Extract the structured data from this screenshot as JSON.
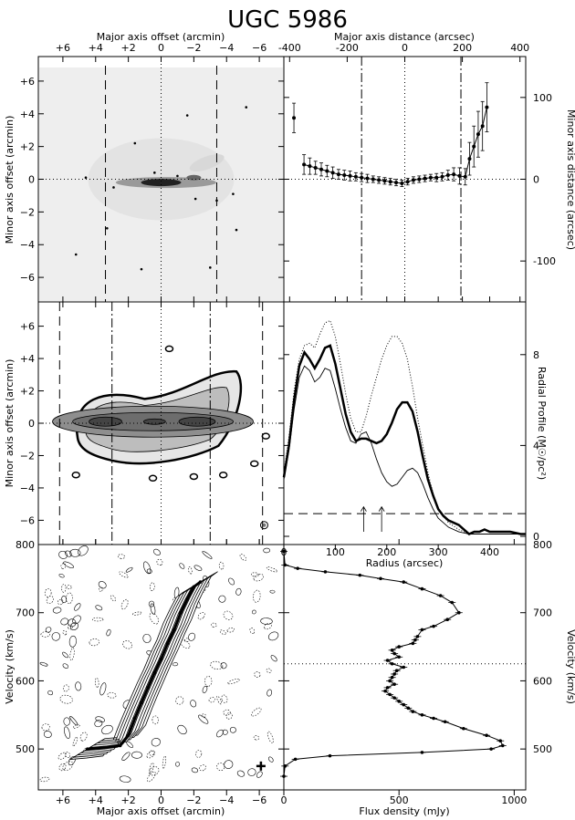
{
  "title": "UGC 5986",
  "chart_data": [
    {
      "id": "optical_image",
      "type": "heatmap",
      "xlabel": "Major axis offset (arcmin)",
      "ylabel": "Minor axis offset (arcmin)",
      "xlim": [
        7.5,
        -7.5
      ],
      "ylim": [
        -7.5,
        7.5
      ],
      "xticks": [
        6,
        4,
        2,
        0,
        -2,
        -4,
        -6
      ],
      "xtick_labels": [
        "+6",
        "+4",
        "+2",
        "0",
        "−2",
        "−4",
        "−6"
      ],
      "yticks": [
        6,
        4,
        2,
        0,
        -2,
        -4,
        -6
      ],
      "ytick_labels": [
        "+6",
        "+4",
        "+2",
        "0",
        "−2",
        "−4",
        "−6"
      ],
      "dashed_lines_x": [
        3.4,
        -3.4
      ]
    },
    {
      "id": "minor_axis_distance",
      "type": "scatter",
      "xlabel": "Major axis distance (arcsec)",
      "ylabel": "Minor axis distance (arcsec)",
      "xlim": [
        -420,
        420
      ],
      "ylim": [
        -150,
        150
      ],
      "xticks": [
        -400,
        -200,
        0,
        200,
        400
      ],
      "yticks": [
        100,
        0,
        -100
      ],
      "x": [
        -385,
        -350,
        -330,
        -310,
        -290,
        -270,
        -250,
        -230,
        -210,
        -190,
        -170,
        -150,
        -130,
        -110,
        -90,
        -70,
        -50,
        -30,
        -10,
        10,
        30,
        50,
        70,
        90,
        110,
        130,
        150,
        170,
        190,
        210,
        225,
        240,
        255,
        270,
        285
      ],
      "y": [
        75,
        18,
        16,
        14,
        12,
        10,
        8,
        6,
        5,
        4,
        3,
        2,
        1,
        0,
        -1,
        -2,
        -3,
        -4,
        -5,
        -3,
        -1,
        0,
        1,
        2,
        2,
        3,
        5,
        6,
        4,
        3,
        25,
        40,
        55,
        65,
        88
      ],
      "err": [
        18,
        12,
        10,
        8,
        8,
        7,
        7,
        6,
        6,
        6,
        5,
        5,
        5,
        4,
        4,
        4,
        4,
        4,
        4,
        4,
        4,
        4,
        4,
        4,
        5,
        5,
        6,
        8,
        10,
        10,
        20,
        25,
        28,
        30,
        30
      ],
      "vlines_dashdot": [
        -150,
        195
      ],
      "vline_dotted": [
        0
      ],
      "hline_dotted": [
        0
      ]
    },
    {
      "id": "hi_intensity",
      "type": "heatmap",
      "ylabel": "Minor axis offset (arcmin)",
      "xlim": [
        7.5,
        -7.5
      ],
      "ylim": [
        -7.5,
        7.5
      ],
      "yticks": [
        6,
        4,
        2,
        0,
        -2,
        -4,
        -6
      ],
      "ytick_labels": [
        "+6",
        "+4",
        "+2",
        "0",
        "−2",
        "−4",
        "−6"
      ],
      "dashed_lines_x": [
        6.2,
        -6.2
      ],
      "dashdot_lines_x": [
        3.0,
        -3.0
      ]
    },
    {
      "id": "radial_profile",
      "type": "line",
      "xlabel": "Radius (arcsec)",
      "ylabel": "Radial Profile (M☉/pc²)",
      "xlim": [
        0,
        470
      ],
      "ylim": [
        0,
        10
      ],
      "xticks": [
        0,
        100,
        200,
        300,
        400
      ],
      "yticks": [
        0,
        4,
        8
      ],
      "series": [
        {
          "style": "thick",
          "x": [
            0,
            10,
            20,
            30,
            40,
            50,
            60,
            70,
            80,
            90,
            100,
            110,
            120,
            130,
            140,
            150,
            160,
            170,
            180,
            190,
            200,
            210,
            220,
            230,
            240,
            250,
            260,
            270,
            280,
            290,
            300,
            310,
            320,
            330,
            340,
            350,
            360,
            370,
            380,
            390,
            400,
            420,
            440,
            460,
            470
          ],
          "y": [
            2.6,
            4.0,
            6.0,
            7.5,
            8.1,
            7.8,
            7.4,
            7.8,
            8.3,
            8.4,
            7.6,
            6.5,
            5.4,
            4.6,
            4.2,
            4.3,
            4.3,
            4.2,
            4.1,
            4.2,
            4.5,
            5.0,
            5.6,
            5.9,
            5.9,
            5.5,
            4.6,
            3.5,
            2.5,
            1.8,
            1.2,
            0.9,
            0.7,
            0.6,
            0.5,
            0.3,
            0.1,
            0.2,
            0.2,
            0.3,
            0.2,
            0.2,
            0.2,
            0.1,
            0.1
          ]
        },
        {
          "style": "dotted",
          "x": [
            0,
            10,
            20,
            30,
            40,
            50,
            60,
            70,
            80,
            90,
            100,
            110,
            120,
            130,
            140,
            150,
            160,
            170,
            180,
            190,
            200,
            210,
            220,
            230,
            240,
            250,
            260,
            270,
            280,
            290,
            300,
            320,
            340,
            360,
            380,
            400,
            420,
            440,
            470
          ],
          "y": [
            2.8,
            4.4,
            6.4,
            7.8,
            8.4,
            8.5,
            8.3,
            8.9,
            9.4,
            9.5,
            8.8,
            7.6,
            6.3,
            5.2,
            4.6,
            4.6,
            5.3,
            6.2,
            7.0,
            7.8,
            8.4,
            8.8,
            8.8,
            8.5,
            7.8,
            6.6,
            5.2,
            4.0,
            2.8,
            1.9,
            1.2,
            0.6,
            0.3,
            0.1,
            0.1,
            0.1,
            0.1,
            0.1,
            0.1
          ]
        },
        {
          "style": "thin",
          "x": [
            0,
            10,
            20,
            30,
            40,
            50,
            60,
            70,
            80,
            90,
            100,
            110,
            120,
            130,
            140,
            150,
            160,
            170,
            180,
            190,
            200,
            210,
            220,
            230,
            240,
            250,
            260,
            270,
            280,
            290,
            300,
            320,
            340,
            360,
            380,
            400,
            420,
            440,
            470
          ],
          "y": [
            2.5,
            3.8,
            5.6,
            7.0,
            7.5,
            7.3,
            6.8,
            7.0,
            7.4,
            7.3,
            6.5,
            5.6,
            4.8,
            4.2,
            4.1,
            4.5,
            4.6,
            4.1,
            3.4,
            2.8,
            2.4,
            2.2,
            2.3,
            2.6,
            2.9,
            3.0,
            2.8,
            2.3,
            1.7,
            1.2,
            0.8,
            0.4,
            0.2,
            0.1,
            0.1,
            0.1,
            0.1,
            0.1,
            0.1
          ]
        }
      ],
      "hline_dashed": [
        1.0
      ],
      "arrows_x": [
        155,
        190
      ]
    },
    {
      "id": "position_velocity",
      "type": "heatmap",
      "xlabel": "Major axis offset (arcmin)",
      "ylabel": "Velocity (km/s)",
      "xlim": [
        7.5,
        -7.5
      ],
      "ylim": [
        440,
        800
      ],
      "xticks": [
        6,
        4,
        2,
        0,
        -2,
        -4,
        -6
      ],
      "xtick_labels": [
        "+6",
        "+4",
        "+2",
        "0",
        "−2",
        "−4",
        "−6"
      ],
      "yticks": [
        500,
        600,
        700,
        800
      ],
      "rotation_curve": {
        "x": [
          4.5,
          3.5,
          2.5,
          2.0,
          1.6,
          1.2,
          0.8,
          0.4,
          0.0,
          -0.4,
          -0.8,
          -1.2,
          -1.6,
          -2.0,
          -2.4
        ],
        "y": [
          500,
          502,
          505,
          520,
          545,
          568,
          590,
          612,
          632,
          655,
          675,
          700,
          720,
          738,
          745
        ]
      }
    },
    {
      "id": "global_profile",
      "type": "line",
      "xlabel": "Flux density (mJy)",
      "ylabel": "Velocity (km/s)",
      "xlim": [
        0,
        1050
      ],
      "ylim": [
        440,
        800
      ],
      "xticks": [
        0,
        500,
        1000
      ],
      "yticks": [
        500,
        600,
        700,
        800
      ],
      "hline_dotted": [
        625
      ],
      "flux": [
        0,
        5,
        60,
        180,
        330,
        420,
        520,
        600,
        680,
        730,
        760,
        710,
        650,
        600,
        580,
        570,
        560,
        500,
        470,
        480,
        500,
        450,
        470,
        520,
        490,
        480,
        470,
        460,
        480,
        450,
        440,
        460,
        480,
        500,
        520,
        540,
        560,
        600,
        650,
        700,
        780,
        880,
        940,
        950,
        900,
        600,
        200,
        50,
        5,
        0
      ],
      "velocity": [
        790,
        770,
        765,
        760,
        755,
        750,
        745,
        735,
        725,
        715,
        700,
        690,
        680,
        675,
        665,
        660,
        655,
        650,
        645,
        640,
        635,
        630,
        625,
        620,
        615,
        610,
        605,
        600,
        595,
        590,
        585,
        580,
        575,
        570,
        565,
        560,
        555,
        550,
        545,
        540,
        530,
        520,
        512,
        505,
        500,
        495,
        490,
        485,
        475,
        460
      ]
    }
  ]
}
